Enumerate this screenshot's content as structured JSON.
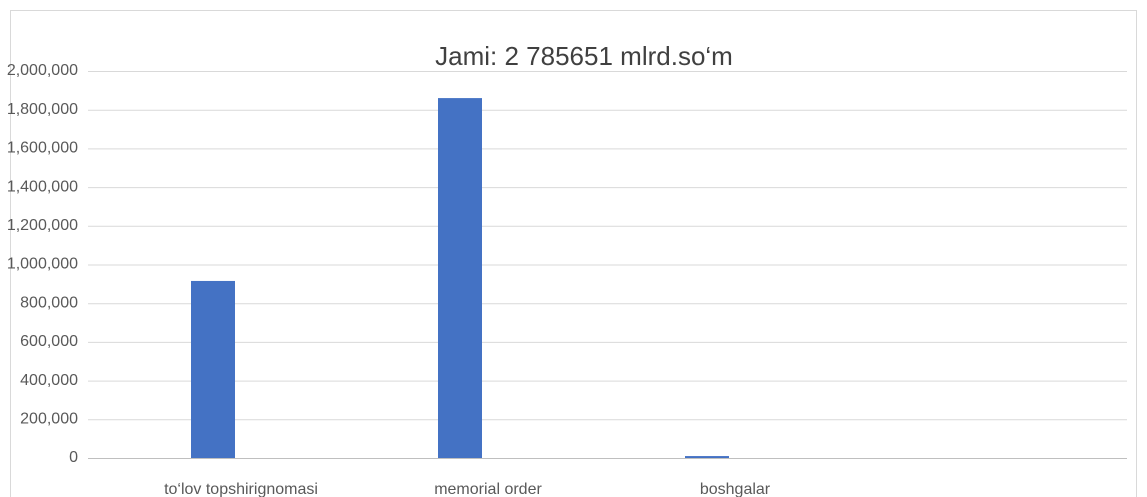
{
  "chart_data": {
    "type": "bar",
    "title": "Jami: 2 785651 mlrd.so‘m",
    "categories": [
      "to‘lov topshirignomasi",
      "memorial order",
      "boshgalar",
      null
    ],
    "values": [
      915000,
      1860000,
      10000,
      null
    ],
    "color": "#4472c4",
    "ylim": [
      0,
      2000000
    ],
    "yticks": [
      0,
      {
        "value": 200000,
        "label": "200,000"
      },
      {
        "value": 400000,
        "label": "400,000"
      },
      {
        "value": 600000,
        "label": "600,000"
      },
      {
        "value": 800000,
        "label": "800,000"
      },
      {
        "value": 1000000,
        "label": "1,000,000"
      },
      {
        "value": 1200000,
        "label": "1,200,000"
      },
      {
        "value": 1400000,
        "label": "1,400,000"
      },
      {
        "value": 1600000,
        "label": "1,600,000"
      },
      {
        "value": 1800000,
        "label": "1,800,000"
      },
      {
        "value": 2000000,
        "label": "2,000,000"
      }
    ],
    "grid": true
  }
}
